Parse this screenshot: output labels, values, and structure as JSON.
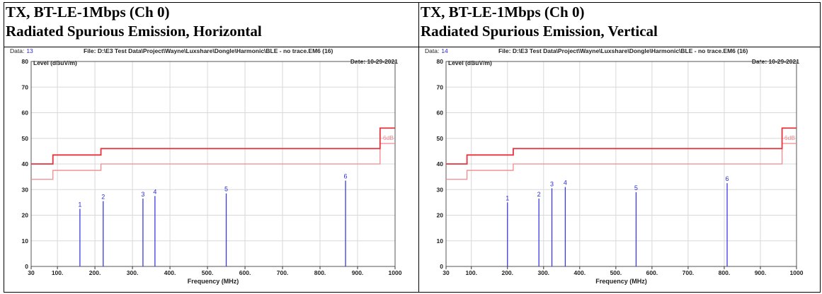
{
  "panels": [
    {
      "title_line1": "TX, BT-LE-1Mbps (Ch 0)",
      "title_line2": "Radiated Spurious Emission, Horizontal",
      "data_label": "Data:",
      "data_value": "13",
      "file_text": "File: D:\\E3 Test Data\\Project\\Wayne\\Luxshare\\Dongle\\Harmonic\\BLE - no trace.EM6  (16)",
      "date_text": "Date: 10-29-2021",
      "ylabel": "Level (dBuV/m)",
      "xlabel": "Frequency (MHz)",
      "margin_label": "-6dB",
      "chart_data": {
        "type": "bar",
        "xlim": [
          30,
          1000
        ],
        "ylim": [
          0,
          80
        ],
        "x_ticks": [
          30,
          100,
          200,
          300,
          400,
          500,
          600,
          700,
          800,
          900,
          1000
        ],
        "x_tick_labels": [
          "30",
          "100.",
          "200.",
          "300.",
          "400.",
          "500.",
          "600.",
          "700.",
          "800.",
          "900.",
          "1000"
        ],
        "y_ticks": [
          0,
          10,
          20,
          30,
          40,
          50,
          60,
          70,
          80
        ],
        "y_tick_labels": [
          "0",
          "10",
          "20",
          "30",
          "40",
          "50",
          "60",
          "70",
          "80"
        ],
        "grid": true,
        "markers": [
          {
            "label": "1",
            "x": 160,
            "y": 22.5
          },
          {
            "label": "2",
            "x": 222,
            "y": 25.5
          },
          {
            "label": "3",
            "x": 328,
            "y": 26.5
          },
          {
            "label": "4",
            "x": 360,
            "y": 27.5
          },
          {
            "label": "5",
            "x": 550,
            "y": 28.5
          },
          {
            "label": "6",
            "x": 868,
            "y": 33.5
          }
        ],
        "limit_line": [
          [
            30,
            40
          ],
          [
            88,
            40
          ],
          [
            88,
            43.5
          ],
          [
            216,
            43.5
          ],
          [
            216,
            46
          ],
          [
            960,
            46
          ],
          [
            960,
            54
          ],
          [
            1000,
            54
          ]
        ],
        "margin_line": [
          [
            30,
            34
          ],
          [
            88,
            34
          ],
          [
            88,
            37.5
          ],
          [
            216,
            37.5
          ],
          [
            216,
            40
          ],
          [
            960,
            40
          ],
          [
            960,
            48
          ],
          [
            1000,
            48
          ]
        ],
        "colors": {
          "limit": "#e8323c",
          "margin": "#f08a8f",
          "marker": "#3a3ae0",
          "grid": "#d8d8d8"
        }
      }
    },
    {
      "title_line1": "TX, BT-LE-1Mbps (Ch 0)",
      "title_line2": "Radiated Spurious Emission, Vertical",
      "data_label": "Data:",
      "data_value": "14",
      "file_text": "File: D:\\E3 Test Data\\Project\\Wayne\\Luxshare\\Dongle\\Harmonic\\BLE - no trace.EM6  (16)",
      "date_text": "Date: 10-29-2021",
      "ylabel": "Level (dBuV/m)",
      "xlabel": "Frequency (MHz)",
      "margin_label": "-6dB",
      "chart_data": {
        "type": "bar",
        "xlim": [
          30,
          1000
        ],
        "ylim": [
          0,
          80
        ],
        "x_ticks": [
          30,
          100,
          200,
          300,
          400,
          500,
          600,
          700,
          800,
          900,
          1000
        ],
        "x_tick_labels": [
          "30",
          "100.",
          "200.",
          "300.",
          "400.",
          "500.",
          "600.",
          "700.",
          "800.",
          "900.",
          "1000"
        ],
        "y_ticks": [
          0,
          10,
          20,
          30,
          40,
          50,
          60,
          70,
          80
        ],
        "y_tick_labels": [
          "0",
          "10",
          "20",
          "30",
          "40",
          "50",
          "60",
          "70",
          "80"
        ],
        "grid": true,
        "markers": [
          {
            "label": "1",
            "x": 200,
            "y": 25
          },
          {
            "label": "2",
            "x": 287,
            "y": 26.5
          },
          {
            "label": "3",
            "x": 323,
            "y": 30.5
          },
          {
            "label": "4",
            "x": 360,
            "y": 31
          },
          {
            "label": "5",
            "x": 556,
            "y": 29
          },
          {
            "label": "6",
            "x": 808,
            "y": 32.5
          }
        ],
        "limit_line": [
          [
            30,
            40
          ],
          [
            88,
            40
          ],
          [
            88,
            43.5
          ],
          [
            216,
            43.5
          ],
          [
            216,
            46
          ],
          [
            960,
            46
          ],
          [
            960,
            54
          ],
          [
            1000,
            54
          ]
        ],
        "margin_line": [
          [
            30,
            34
          ],
          [
            88,
            34
          ],
          [
            88,
            37.5
          ],
          [
            216,
            37.5
          ],
          [
            216,
            40
          ],
          [
            960,
            40
          ],
          [
            960,
            48
          ],
          [
            1000,
            48
          ]
        ],
        "colors": {
          "limit": "#e8323c",
          "margin": "#f08a8f",
          "marker": "#3a3ae0",
          "grid": "#d8d8d8"
        }
      }
    }
  ]
}
